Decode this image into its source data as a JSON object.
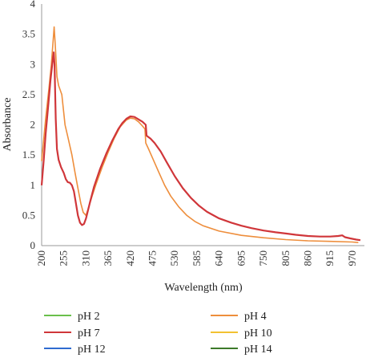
{
  "chart_data": {
    "type": "line",
    "title": "",
    "xlabel": "Wavelength (nm)",
    "ylabel": "Absorbance",
    "xlim": [
      200,
      1000
    ],
    "ylim": [
      0,
      4
    ],
    "x_ticks": [
      "200",
      "255",
      "310",
      "365",
      "420",
      "475",
      "530",
      "585",
      "640",
      "695",
      "750",
      "805",
      "860",
      "915",
      "970"
    ],
    "y_ticks": [
      "0",
      "0.5",
      "1",
      "1.5",
      "2",
      "2.5",
      "3",
      "3.5",
      "4"
    ],
    "grid": false,
    "legend_position": "bottom",
    "series": [
      {
        "name": "pH 2",
        "color": "#6abf4b",
        "points": []
      },
      {
        "name": "pH 4",
        "color": "#ee8e3c",
        "points": [
          [
            200,
            1.4
          ],
          [
            210,
            2.1
          ],
          [
            218,
            2.6
          ],
          [
            224,
            3.0
          ],
          [
            228,
            3.35
          ],
          [
            231,
            3.62
          ],
          [
            234,
            3.3
          ],
          [
            238,
            2.8
          ],
          [
            242,
            2.65
          ],
          [
            250,
            2.5
          ],
          [
            258,
            2.0
          ],
          [
            265,
            1.8
          ],
          [
            275,
            1.5
          ],
          [
            283,
            1.2
          ],
          [
            290,
            0.95
          ],
          [
            297,
            0.7
          ],
          [
            303,
            0.55
          ],
          [
            310,
            0.5
          ],
          [
            316,
            0.62
          ],
          [
            325,
            0.82
          ],
          [
            335,
            1.02
          ],
          [
            350,
            1.3
          ],
          [
            365,
            1.55
          ],
          [
            380,
            1.78
          ],
          [
            395,
            1.97
          ],
          [
            410,
            2.08
          ],
          [
            420,
            2.11
          ],
          [
            430,
            2.1
          ],
          [
            440,
            2.05
          ],
          [
            450,
            1.98
          ],
          [
            456,
            1.93
          ],
          [
            458,
            1.7
          ],
          [
            465,
            1.6
          ],
          [
            475,
            1.45
          ],
          [
            490,
            1.22
          ],
          [
            505,
            1.0
          ],
          [
            520,
            0.82
          ],
          [
            540,
            0.64
          ],
          [
            560,
            0.5
          ],
          [
            580,
            0.4
          ],
          [
            600,
            0.33
          ],
          [
            640,
            0.24
          ],
          [
            695,
            0.17
          ],
          [
            750,
            0.13
          ],
          [
            805,
            0.1
          ],
          [
            860,
            0.08
          ],
          [
            915,
            0.07
          ],
          [
            970,
            0.06
          ],
          [
            985,
            0.05
          ]
        ]
      },
      {
        "name": "pH 7",
        "color": "#d0363a",
        "points": [
          [
            200,
            1.0
          ],
          [
            205,
            1.4
          ],
          [
            210,
            1.85
          ],
          [
            216,
            2.3
          ],
          [
            222,
            2.75
          ],
          [
            228,
            3.1
          ],
          [
            230,
            3.2
          ],
          [
            232,
            3.0
          ],
          [
            235,
            2.1
          ],
          [
            238,
            1.6
          ],
          [
            242,
            1.42
          ],
          [
            248,
            1.3
          ],
          [
            255,
            1.2
          ],
          [
            260,
            1.1
          ],
          [
            265,
            1.05
          ],
          [
            270,
            1.04
          ],
          [
            275,
            1.0
          ],
          [
            280,
            0.9
          ],
          [
            285,
            0.7
          ],
          [
            290,
            0.5
          ],
          [
            295,
            0.38
          ],
          [
            300,
            0.34
          ],
          [
            305,
            0.36
          ],
          [
            310,
            0.45
          ],
          [
            320,
            0.72
          ],
          [
            330,
            0.98
          ],
          [
            345,
            1.27
          ],
          [
            360,
            1.52
          ],
          [
            375,
            1.74
          ],
          [
            390,
            1.93
          ],
          [
            400,
            2.03
          ],
          [
            410,
            2.1
          ],
          [
            420,
            2.14
          ],
          [
            430,
            2.13
          ],
          [
            440,
            2.09
          ],
          [
            450,
            2.05
          ],
          [
            458,
            2.0
          ],
          [
            460,
            1.82
          ],
          [
            470,
            1.77
          ],
          [
            480,
            1.7
          ],
          [
            495,
            1.56
          ],
          [
            510,
            1.38
          ],
          [
            530,
            1.15
          ],
          [
            550,
            0.95
          ],
          [
            570,
            0.79
          ],
          [
            590,
            0.66
          ],
          [
            610,
            0.56
          ],
          [
            640,
            0.45
          ],
          [
            670,
            0.38
          ],
          [
            695,
            0.33
          ],
          [
            720,
            0.29
          ],
          [
            750,
            0.25
          ],
          [
            780,
            0.22
          ],
          [
            805,
            0.2
          ],
          [
            830,
            0.18
          ],
          [
            860,
            0.16
          ],
          [
            890,
            0.15
          ],
          [
            915,
            0.15
          ],
          [
            935,
            0.16
          ],
          [
            945,
            0.17
          ],
          [
            952,
            0.14
          ],
          [
            965,
            0.12
          ],
          [
            980,
            0.1
          ],
          [
            990,
            0.09
          ]
        ]
      },
      {
        "name": "pH 10",
        "color": "#f2c232",
        "points": []
      },
      {
        "name": "pH 12",
        "color": "#2f6bd0",
        "points": []
      },
      {
        "name": "pH 14",
        "color": "#3c7a2a",
        "points": []
      }
    ]
  }
}
